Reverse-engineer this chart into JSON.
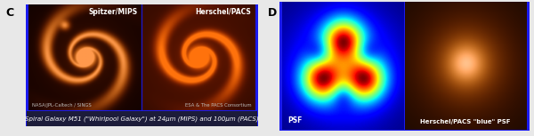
{
  "fig_width": 6.0,
  "fig_height": 1.53,
  "dpi": 100,
  "bg_color": "#e8e8e8",
  "label_C": "C",
  "label_D": "D",
  "panel_C_border_color": "#1a1aee",
  "panel_D_border_color": "#1a1aee",
  "spitzer_label": "Spitzer/MIPS",
  "herschel_label": "Herschel/PACS",
  "credit_left": "NASA/JPL-Caltech / SINGS",
  "credit_right": "ESA & The PACS Consortium",
  "caption": "Spiral Galaxy M51 (\"Whirlpool Galaxy\") at 24μm (MIPS) and 100μm (PACS)",
  "psf_label": "PSF",
  "psf_herschel_label": "Herschel/PACS \"blue\" PSF",
  "caption_bg": "#1c1c3a",
  "caption_color": "#ffffff",
  "caption_fontsize": 5.0,
  "label_fontsize": 9,
  "sublabel_fontsize": 5.5,
  "credit_fontsize": 3.8,
  "psf_fontsize": 5.5
}
